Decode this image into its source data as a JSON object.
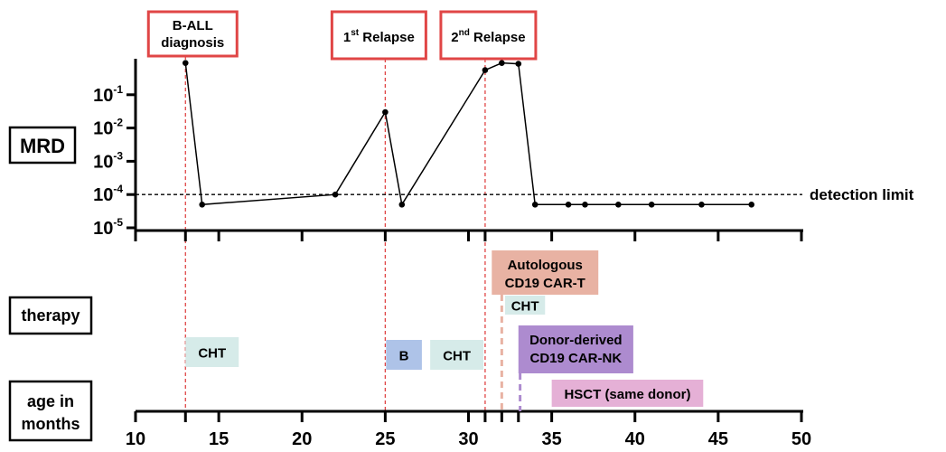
{
  "chart_data": {
    "type": "line",
    "title": "",
    "xlabel": "age in months",
    "ylabel": "MRD",
    "yscale": "log",
    "ylim": [
      1e-05,
      1
    ],
    "xlim": [
      10,
      50
    ],
    "grid": false,
    "y_ticks": [
      {
        "value": 0.1,
        "base": "10",
        "exp": "-1"
      },
      {
        "value": 0.01,
        "base": "10",
        "exp": "-2"
      },
      {
        "value": 0.001,
        "base": "10",
        "exp": "-3"
      },
      {
        "value": 0.0001,
        "base": "10",
        "exp": "-4"
      },
      {
        "value": 1e-05,
        "base": "10",
        "exp": "-5"
      }
    ],
    "x_ticks_top": [
      10,
      13,
      15,
      20,
      25,
      30,
      31,
      35,
      40,
      45,
      50
    ],
    "x_ticks_bottom": [
      10,
      13,
      15,
      20,
      25,
      30,
      31,
      32,
      33,
      35,
      40,
      45,
      50
    ],
    "x_tick_labels": [
      "10",
      "15",
      "20",
      "25",
      "30",
      "35",
      "40",
      "45",
      "50"
    ],
    "x_tick_label_values": [
      10,
      15,
      20,
      25,
      30,
      35,
      40,
      45,
      50
    ],
    "series": [
      {
        "name": "MRD",
        "x": [
          13,
          14,
          22,
          25,
          26,
          31,
          32,
          33,
          34,
          36,
          37,
          39,
          41,
          44,
          47
        ],
        "y": [
          0.9,
          5e-05,
          0.0001,
          0.03,
          5e-05,
          0.55,
          0.9,
          0.85,
          5e-05,
          5e-05,
          5e-05,
          5e-05,
          5e-05,
          5e-05,
          5e-05
        ]
      }
    ],
    "detection_limit": {
      "value": 0.0001,
      "label": "detection limit"
    },
    "events": [
      {
        "x": 13,
        "label_main": "B-ALL",
        "label_sub": "diagnosis"
      },
      {
        "x": 25,
        "num": "1",
        "sup": "st",
        "rest": " Relapse"
      },
      {
        "x": 31,
        "num": "2",
        "sup": "nd",
        "rest": " Relapse"
      }
    ],
    "therapies": [
      {
        "label": "CHT",
        "start": 13,
        "end": 16.2,
        "row": "low",
        "color": "#d6ebe9"
      },
      {
        "label": "B",
        "start": 25.05,
        "end": 27.2,
        "row": "low",
        "color": "#aec3e8"
      },
      {
        "label": "CHT",
        "start": 27.7,
        "end": 30.9,
        "row": "low",
        "color": "#d6ebe9"
      },
      {
        "lines": [
          "Autologous",
          "CD19 CAR-T"
        ],
        "start": 31.4,
        "end": 37.8,
        "row": "top",
        "color": "#e8b2a3",
        "marker_x": 32,
        "marker_color": "#e8b2a3"
      },
      {
        "label": "CHT",
        "start": 32.2,
        "end": 34.6,
        "row": "second",
        "color": "#d6ebe9"
      },
      {
        "lines": [
          "Donor-derived",
          "CD19 CAR-NK"
        ],
        "start": 33,
        "end": 39.9,
        "row": "mid",
        "color": "#ad8bcf",
        "marker_x": 33.1,
        "marker_color": "#ad8bcf"
      },
      {
        "label": "HSCT (same donor)",
        "start": 35,
        "end": 44.1,
        "row": "bottom",
        "color": "#e5b0d6"
      }
    ],
    "row_labels": {
      "mrd": "MRD",
      "therapy": "therapy",
      "age": [
        "age in",
        "months"
      ]
    },
    "colors": {
      "event": "#e04646",
      "axis": "#000000",
      "line": "#000000"
    }
  }
}
